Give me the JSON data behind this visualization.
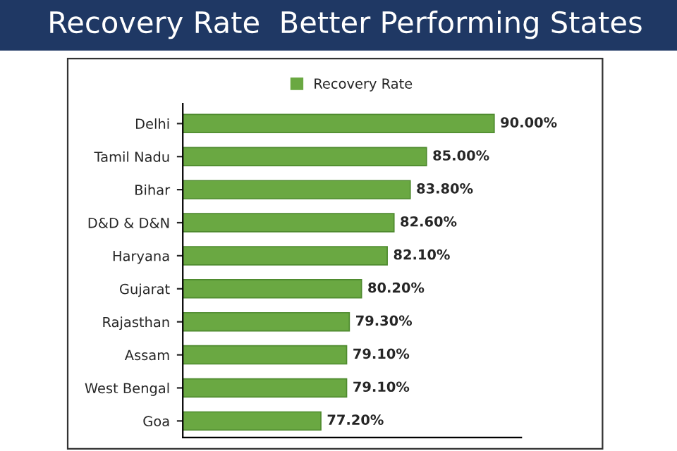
{
  "chart_data": {
    "type": "bar",
    "orientation": "horizontal",
    "title": "Recovery Rate  Better Performing States",
    "categories": [
      "Delhi",
      "Tamil Nadu",
      "Bihar",
      "D&D & D&N",
      "Haryana",
      "Gujarat",
      "Rajasthan",
      "Assam",
      "West Bengal",
      "Goa"
    ],
    "series": [
      {
        "name": "Recovery Rate",
        "color": "#6aa842",
        "values": [
          90.0,
          85.0,
          83.8,
          82.6,
          82.1,
          80.2,
          79.3,
          79.1,
          79.1,
          77.2
        ],
        "value_labels": [
          "90.00%",
          "85.00%",
          "83.80%",
          "82.60%",
          "82.10%",
          "80.20%",
          "79.30%",
          "79.10%",
          "79.10%",
          "77.20%"
        ]
      }
    ],
    "xlim": [
      67,
      92
    ],
    "legend": "top",
    "grid": false
  }
}
